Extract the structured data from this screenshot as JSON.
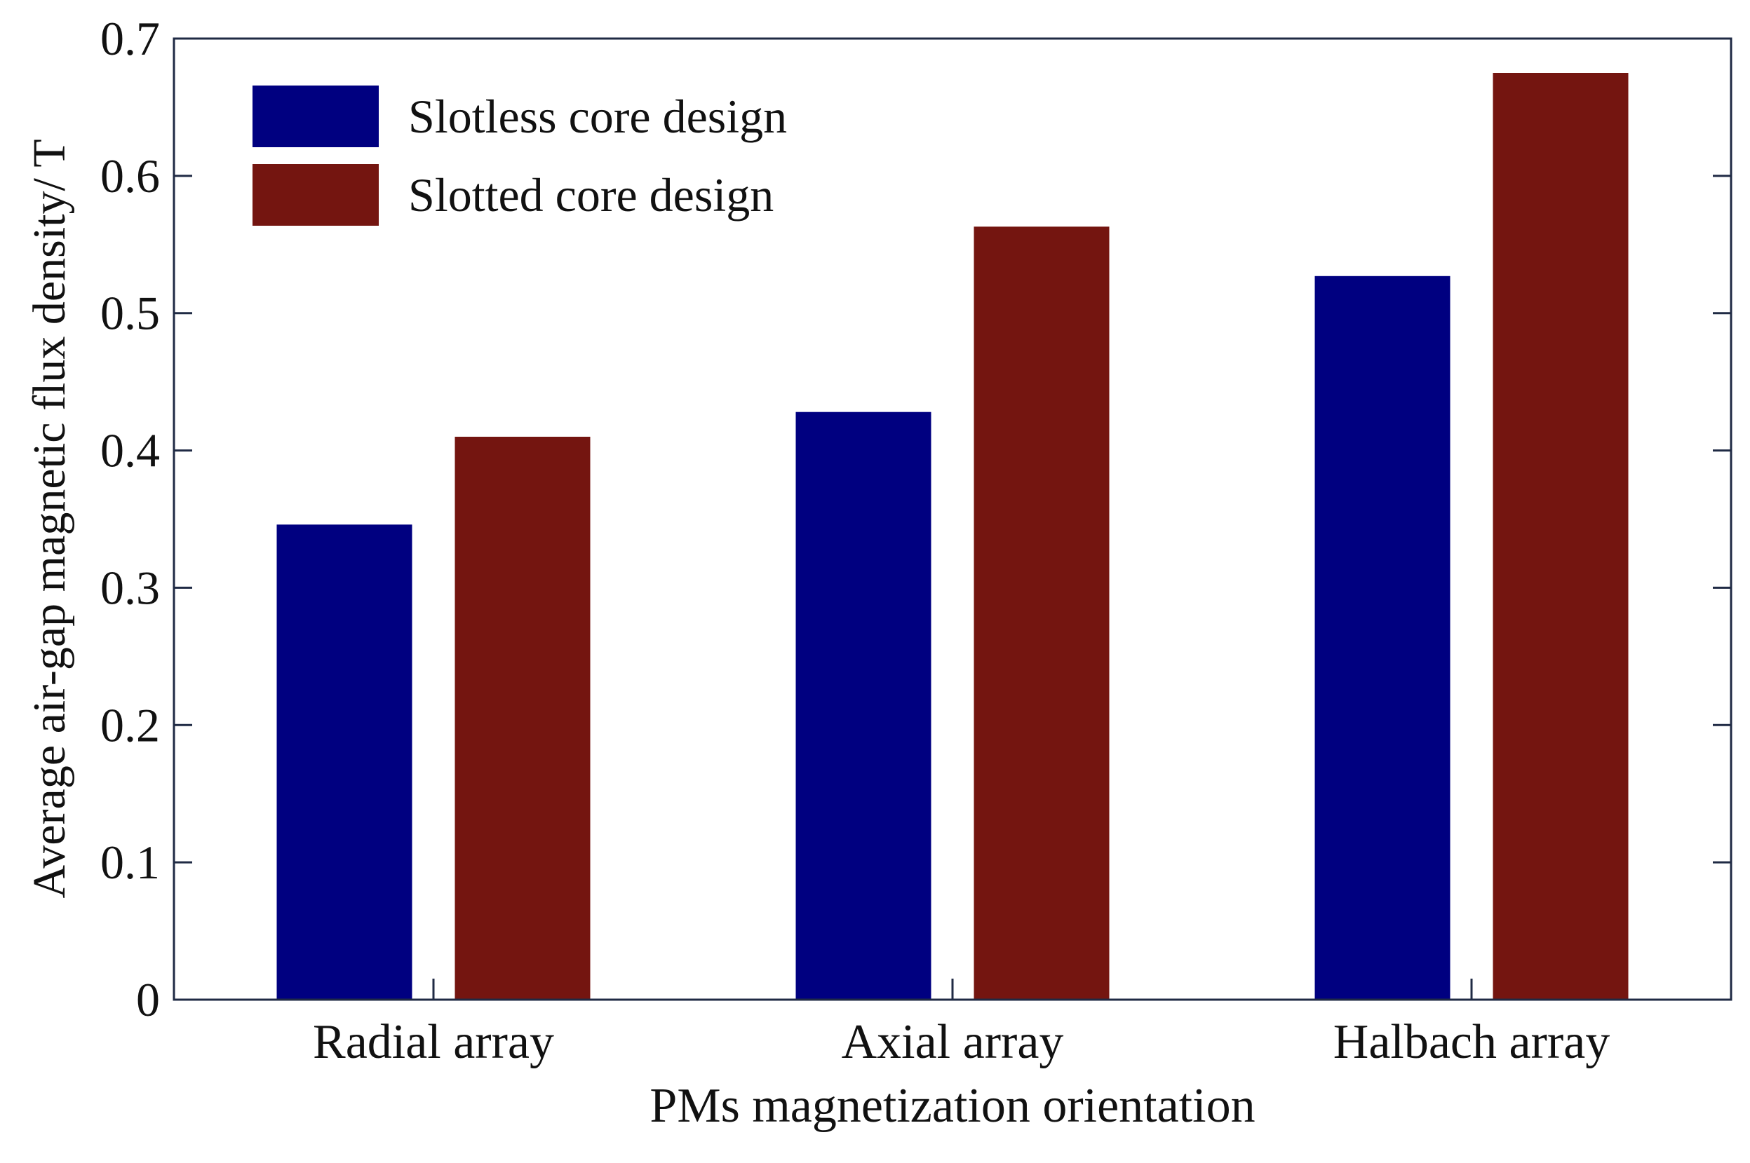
{
  "chart_data": {
    "type": "bar",
    "title": "",
    "xlabel": "PMs magnetization orientation",
    "ylabel": "Average air-gap magnetic flux density/ T",
    "categories": [
      "Radial array",
      "Axial array",
      "Halbach array"
    ],
    "series": [
      {
        "name": "Slotless core design",
        "color": "#000080",
        "values": [
          0.346,
          0.428,
          0.527
        ]
      },
      {
        "name": "Slotted core design",
        "color": "#741510",
        "values": [
          0.41,
          0.563,
          0.675
        ]
      }
    ],
    "ylim": [
      0,
      0.7
    ],
    "yticks": [
      0,
      0.1,
      0.2,
      0.3,
      0.4,
      0.5,
      0.6,
      0.7
    ],
    "ytick_labels": [
      "0",
      "0.1",
      "0.2",
      "0.3",
      "0.4",
      "0.5",
      "0.6",
      "0.7"
    ],
    "grid": false,
    "legend_position": "top-left"
  }
}
